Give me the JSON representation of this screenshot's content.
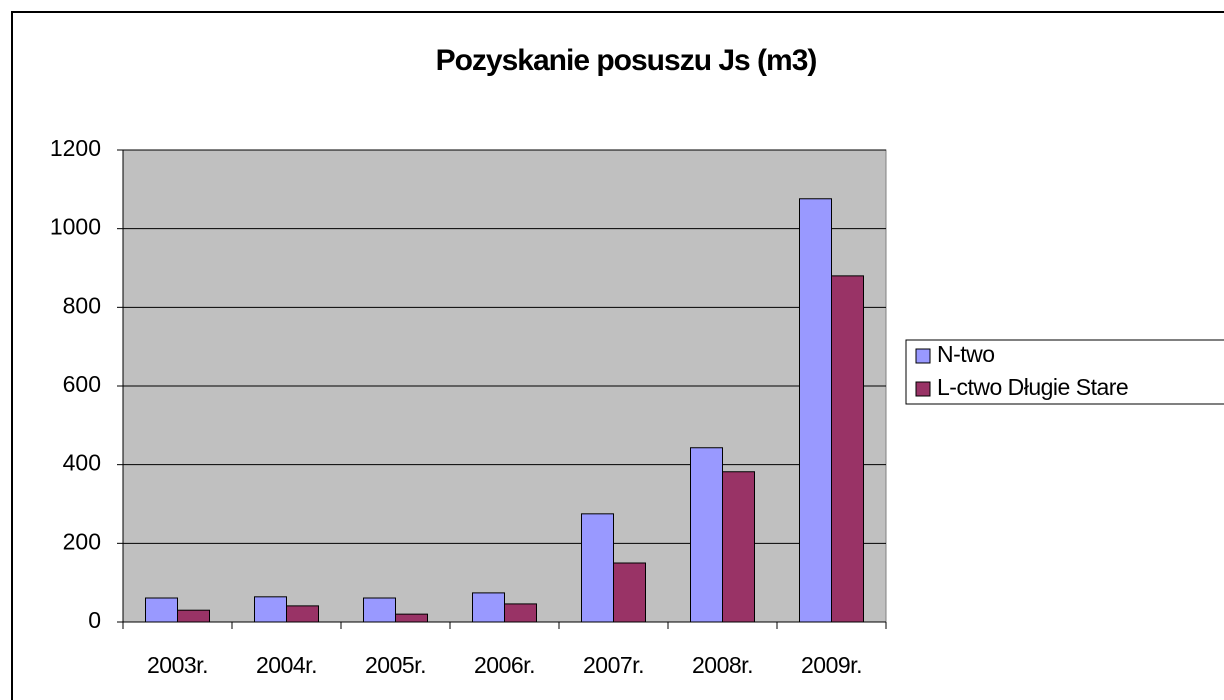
{
  "chart_data": {
    "type": "bar",
    "title": "Pozyskanie posuszu Js (m3)",
    "categories": [
      "2003r.",
      "2004r.",
      "2005r.",
      "2006r.",
      "2007r.",
      "2008r.",
      "2009r."
    ],
    "series": [
      {
        "name": "N-two",
        "color": "#9999ff",
        "values": [
          61,
          64,
          61,
          74,
          275,
          443,
          1076
        ]
      },
      {
        "name": "L-ctwo Długie Stare",
        "color": "#993366",
        "values": [
          30,
          41,
          20,
          46,
          150,
          382,
          880
        ]
      }
    ],
    "ylim": [
      0,
      1200
    ],
    "yticks": [
      0,
      200,
      400,
      600,
      800,
      1000,
      1200
    ],
    "grid": true,
    "legend": "right"
  }
}
